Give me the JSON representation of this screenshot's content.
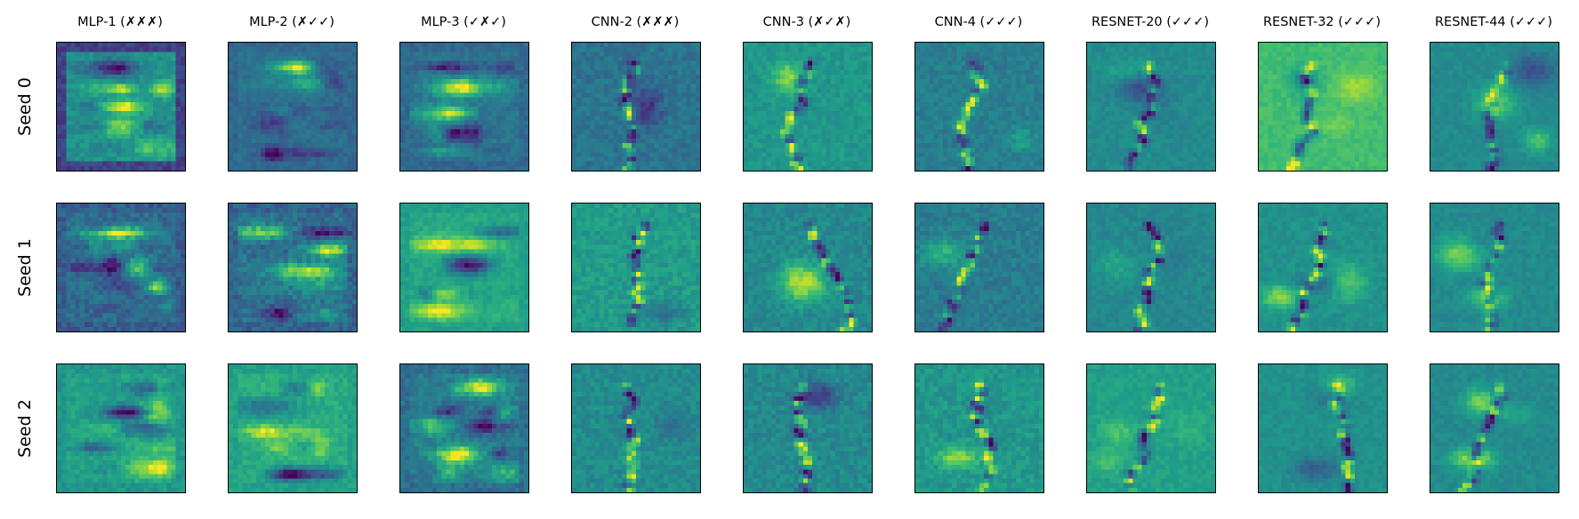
{
  "columns": [
    {
      "label": "MLP-1 (✗✗✗)"
    },
    {
      "label": "MLP-2 (✗✓✓)"
    },
    {
      "label": "MLP-3 (✓✗✓)"
    },
    {
      "label": "CNN-2 (✗✗✗)"
    },
    {
      "label": "CNN-3 (✗✓✗)"
    },
    {
      "label": "CNN-4 (✓✓✓)"
    },
    {
      "label": "RESNET-20 (✓✓✓)"
    },
    {
      "label": "RESNET-32 (✓✓✓)"
    },
    {
      "label": "RESNET-44 (✓✓✓)"
    }
  ],
  "rows": [
    {
      "label": "Seed 0"
    },
    {
      "label": "Seed 1"
    },
    {
      "label": "Seed 2"
    }
  ],
  "colormap": "viridis",
  "colors": {
    "frame": "#000000",
    "background": "#ffffff"
  }
}
